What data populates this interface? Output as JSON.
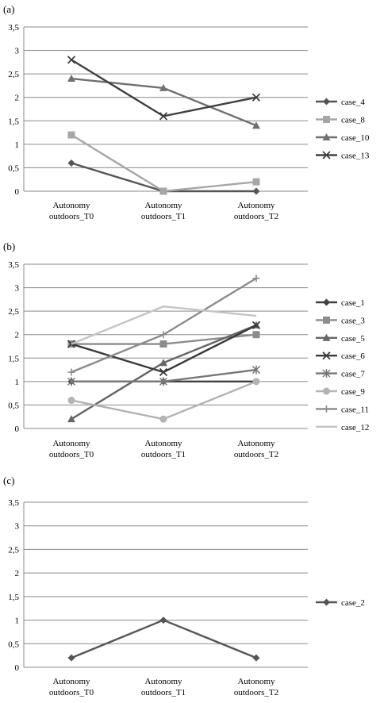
{
  "chart_data": [
    {
      "type": "line",
      "panel_label": "(a)",
      "categories": [
        "Autonomy outdoors_T0",
        "Autonomy outdoors_T1",
        "Autonomy outdoors_T2"
      ],
      "ylim": [
        0,
        3.5
      ],
      "y_ticks": [
        "0",
        "0,5",
        "1",
        "1,5",
        "2",
        "2,5",
        "3",
        "3,5"
      ],
      "grid": true,
      "legend_position": "right",
      "series": [
        {
          "name": "case_4",
          "values": [
            0.6,
            0,
            0
          ],
          "color": "#555555",
          "marker": "diamond"
        },
        {
          "name": "case_8",
          "values": [
            1.2,
            0,
            0.2
          ],
          "color": "#a6a6a6",
          "marker": "square"
        },
        {
          "name": "case_10",
          "values": [
            2.4,
            2.2,
            1.4
          ],
          "color": "#707070",
          "marker": "triangle"
        },
        {
          "name": "case_13",
          "values": [
            2.8,
            1.6,
            2.0
          ],
          "color": "#404040",
          "marker": "x"
        }
      ]
    },
    {
      "type": "line",
      "panel_label": "(b)",
      "categories": [
        "Autonomy outdoors_T0",
        "Autonomy outdoors_T1",
        "Autonomy outdoors_T2"
      ],
      "ylim": [
        0,
        3.5
      ],
      "y_ticks": [
        "0",
        "0,5",
        "1",
        "1,5",
        "2",
        "2,5",
        "3",
        "3,5"
      ],
      "grid": true,
      "legend_position": "right",
      "series": [
        {
          "name": "case_1",
          "values": [
            1.0,
            1.0,
            1.0
          ],
          "color": "#404040",
          "marker": "diamond"
        },
        {
          "name": "case_3",
          "values": [
            1.8,
            1.8,
            2.0
          ],
          "color": "#8c8c8c",
          "marker": "square"
        },
        {
          "name": "case_5",
          "values": [
            0.2,
            1.4,
            2.2
          ],
          "color": "#666666",
          "marker": "triangle"
        },
        {
          "name": "case_6",
          "values": [
            1.8,
            1.2,
            2.2
          ],
          "color": "#3a3a3a",
          "marker": "x"
        },
        {
          "name": "case_7",
          "values": [
            1.0,
            1.0,
            1.25
          ],
          "color": "#777777",
          "marker": "star"
        },
        {
          "name": "case_9",
          "values": [
            0.6,
            0.2,
            1.0
          ],
          "color": "#b3b3b3",
          "marker": "circle"
        },
        {
          "name": "case_11",
          "values": [
            1.2,
            2.0,
            3.2
          ],
          "color": "#8c8c8c",
          "marker": "plus"
        },
        {
          "name": "case_12",
          "values": [
            1.8,
            2.6,
            2.4
          ],
          "color": "#c4c4c4",
          "marker": "none"
        }
      ]
    },
    {
      "type": "line",
      "panel_label": "(c)",
      "categories": [
        "Autonomy outdoors_T0",
        "Autonomy outdoors_T1",
        "Autonomy outdoors_T2"
      ],
      "ylim": [
        0,
        3.5
      ],
      "y_ticks": [
        "0",
        "0,5",
        "1",
        "1,5",
        "2",
        "2,5",
        "3",
        "3,5"
      ],
      "grid": true,
      "legend_position": "right",
      "series": [
        {
          "name": "case_2",
          "values": [
            0.2,
            1.0,
            0.2
          ],
          "color": "#555555",
          "marker": "diamond"
        }
      ]
    }
  ]
}
